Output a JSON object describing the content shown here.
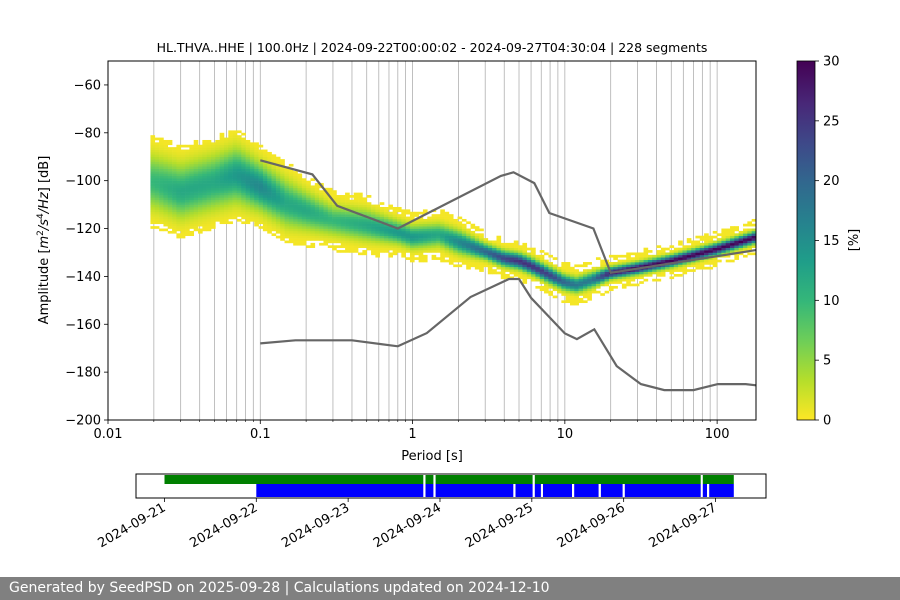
{
  "chart_data": {
    "type": "heatmap",
    "title": "HL.THVA..HHE | 100.0Hz | 2024-09-22T00:00:02 - 2024-09-27T04:30:04 | 228 segments",
    "xlabel": "Period [s]",
    "ylabel": "Amplitude [m²/s⁴/Hz] [dB]",
    "x_scale": "log",
    "xlim": [
      0.01,
      180
    ],
    "ylim": [
      -200,
      -50
    ],
    "x_ticks": [
      0.01,
      0.1,
      1,
      10,
      100
    ],
    "x_tick_labels": [
      "0.01",
      "0.1",
      "1",
      "10",
      "100"
    ],
    "y_ticks": [
      -200,
      -180,
      -160,
      -140,
      -120,
      -100,
      -80,
      -60
    ],
    "y_tick_labels": [
      "−200",
      "−180",
      "−160",
      "−140",
      "−120",
      "−100",
      "−80",
      "−60"
    ],
    "grid": "vertical lines at log ticks",
    "colorbar": {
      "label": "[%]",
      "range": [
        0,
        30
      ],
      "ticks": [
        0,
        5,
        10,
        15,
        20,
        25,
        30
      ],
      "colormap": "viridis_r",
      "colors": [
        "#fde725",
        "#b5de2b",
        "#6ece58",
        "#35b779",
        "#1f9e89",
        "#26828e",
        "#31688e",
        "#3e4989",
        "#482878",
        "#440154"
      ]
    },
    "mode_curve": {
      "name": "",
      "period": [
        0.02,
        0.03,
        0.05,
        0.07,
        0.1,
        0.15,
        0.2,
        0.3,
        0.5,
        0.8,
        1.0,
        1.5,
        2.0,
        3.0,
        4.0,
        5.0,
        6.0,
        8.0,
        10.0,
        12.0,
        15.0,
        20.0,
        30.0,
        50.0,
        100.0,
        180.0
      ],
      "db": [
        -101,
        -105,
        -101,
        -98,
        -103,
        -110,
        -113,
        -117,
        -119,
        -122,
        -124,
        -123,
        -126,
        -130,
        -133,
        -134,
        -136,
        -140,
        -143,
        -144,
        -142,
        -139,
        -137,
        -134,
        -129,
        -124
      ],
      "spread": [
        7,
        7,
        7,
        7,
        6,
        6,
        5,
        4,
        4,
        3,
        3,
        3,
        3,
        2,
        2,
        2,
        2,
        2,
        2,
        2,
        2,
        1.5,
        1.5,
        1.5,
        1.5,
        1.5
      ],
      "peak_pct": [
        10,
        12,
        12,
        14,
        16,
        12,
        12,
        10,
        12,
        14,
        14,
        12,
        16,
        20,
        24,
        26,
        26,
        24,
        20,
        18,
        18,
        28,
        30,
        30,
        30,
        30
      ]
    },
    "nhnm": {
      "period": [
        0.1,
        0.22,
        0.32,
        0.8,
        3.8,
        4.6,
        6.3,
        7.9,
        15.4,
        20,
        180
      ],
      "db": [
        -91.5,
        -97.4,
        -110.5,
        -120,
        -98,
        -96.5,
        -101,
        -113.5,
        -120,
        -138.5,
        -129
      ]
    },
    "nlnm": {
      "period": [
        0.1,
        0.17,
        0.4,
        0.8,
        1.24,
        2.4,
        4.3,
        5,
        6,
        10,
        12,
        15.6,
        21.9,
        31.6,
        45,
        70,
        101,
        154,
        180
      ],
      "db": [
        -168,
        -166.7,
        -166.7,
        -169.2,
        -163.7,
        -148.6,
        -141.1,
        -141.1,
        -149,
        -163.8,
        -166.2,
        -162.1,
        -177.5,
        -185,
        -187.5,
        -187.5,
        -185,
        -185,
        -185.5
      ]
    }
  },
  "availability": {
    "date_labels": [
      "2024-09-21",
      "2024-09-22",
      "2024-09-23",
      "2024-09-24",
      "2024-09-25",
      "2024-09-26",
      "2024-09-27"
    ],
    "date_days": [
      0,
      1,
      2,
      3,
      4,
      5,
      6
    ],
    "xlim_days": [
      -0.31,
      6.55
    ],
    "green_span": [
      0,
      6.2
    ],
    "green_gaps": [
      2.83,
      2.94,
      4.02,
      5.85
    ],
    "blue_span": [
      1.0,
      6.2
    ],
    "blue_gaps": [
      2.83,
      2.94,
      3.81,
      4.02,
      4.11,
      4.45,
      4.74,
      5.0,
      5.85,
      5.92
    ],
    "colors": {
      "green": "#008000",
      "blue": "#0000ff"
    }
  },
  "footer": {
    "text": "Generated by SeedPSD on 2025-09-28 | Calculations updated on 2024-12-10"
  }
}
